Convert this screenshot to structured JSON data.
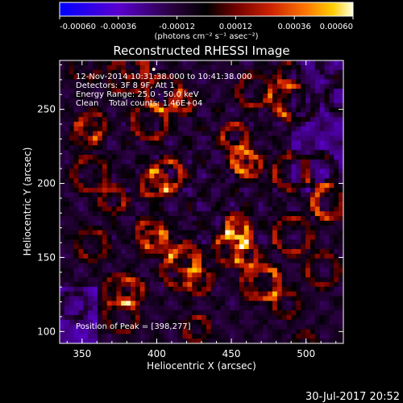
{
  "chart_data": {
    "type": "heatmap",
    "title": "Reconstructed RHESSI Image",
    "xlabel": "Heliocentric X (arcsec)",
    "ylabel": "Heliocentric Y (arcsec)",
    "xlim": [
      335,
      525
    ],
    "ylim": [
      92,
      283
    ],
    "x_ticks": [
      350,
      400,
      450,
      500
    ],
    "y_ticks": [
      100,
      150,
      200,
      250
    ],
    "colorbar": {
      "range": [
        -0.0006,
        0.0006
      ],
      "ticks": [
        "-0.00060",
        "-0.00036",
        "-0.00012",
        "0.00012",
        "0.00036",
        "0.00060"
      ],
      "tick_values": [
        -0.0006,
        -0.00036,
        -0.00012,
        0.00012,
        0.00036,
        0.0006
      ],
      "units": "(photons cm⁻² s⁻¹ asec⁻²)"
    },
    "annotations": [
      "12-Nov-2014 10:31:38.000 to 10:41:38.000",
      "Detectors: 3F 8 9F, Att 1",
      "Energy Range: 25.0 - 50.0 keV",
      "Clean    Total counts: 1.46E+04"
    ],
    "peak_label": "Position of Peak = [398,277]",
    "peak": [
      398,
      277
    ],
    "grid": false
  },
  "footer": {
    "date": "30-Jul-2017 20:52"
  },
  "colors": {
    "background": "#000000",
    "text": "#ffffff",
    "colormap": [
      "#0000ff",
      "#6600cc",
      "#440066",
      "#000000",
      "#660000",
      "#cc2200",
      "#ff6600",
      "#ffcc00",
      "#ffffcc"
    ]
  }
}
